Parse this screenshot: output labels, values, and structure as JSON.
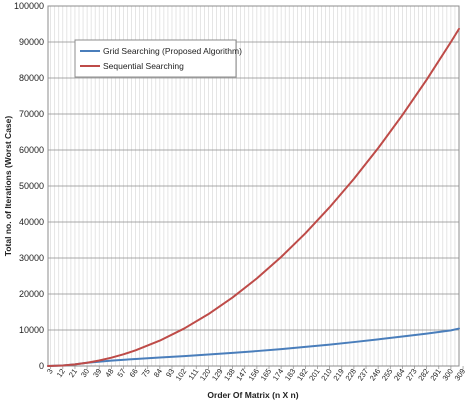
{
  "chart_data": {
    "type": "line",
    "xlabel": "Order Of Matrix (n X n)",
    "ylabel": "Total no. of Iterations (Worst Case)",
    "ylim": [
      0,
      100000
    ],
    "yticks": [
      0,
      10000,
      20000,
      30000,
      40000,
      50000,
      60000,
      70000,
      80000,
      90000,
      100000
    ],
    "x_tick_labels": [
      "3",
      "12",
      "21",
      "30",
      "39",
      "48",
      "57",
      "66",
      "75",
      "84",
      "93",
      "102",
      "111",
      "120",
      "129",
      "138",
      "147",
      "156",
      "165",
      "174",
      "183",
      "192",
      "201",
      "210",
      "219",
      "228",
      "237",
      "246",
      "255",
      "264",
      "273",
      "282",
      "291",
      "300",
      "309"
    ],
    "x_range": [
      1,
      306
    ],
    "grid": "vertical-and-horizontal",
    "legend_position": "top-left",
    "series": [
      {
        "name": "Grid Searching (Proposed Algorithm)",
        "color": "#4a7ebb",
        "x": [
          1,
          12,
          21,
          30,
          48,
          66,
          84,
          102,
          120,
          138,
          156,
          174,
          192,
          210,
          228,
          246,
          264,
          282,
          300,
          306
        ],
        "y": [
          1,
          144,
          441,
          900,
          1500,
          1950,
          2350,
          2750,
          3200,
          3650,
          4150,
          4700,
          5300,
          5950,
          6650,
          7400,
          8200,
          9000,
          9900,
          10400
        ]
      },
      {
        "name": "Sequential Searching",
        "color": "#be4b48",
        "x": [
          1,
          12,
          21,
          30,
          39,
          48,
          57,
          66,
          84,
          102,
          120,
          138,
          156,
          174,
          192,
          210,
          228,
          246,
          264,
          282,
          300,
          306
        ],
        "y": [
          1,
          144,
          441,
          900,
          1521,
          2304,
          3249,
          4356,
          7056,
          10404,
          14400,
          19044,
          24336,
          30276,
          36864,
          44100,
          51984,
          60516,
          69696,
          79524,
          90000,
          93636
        ]
      }
    ]
  }
}
